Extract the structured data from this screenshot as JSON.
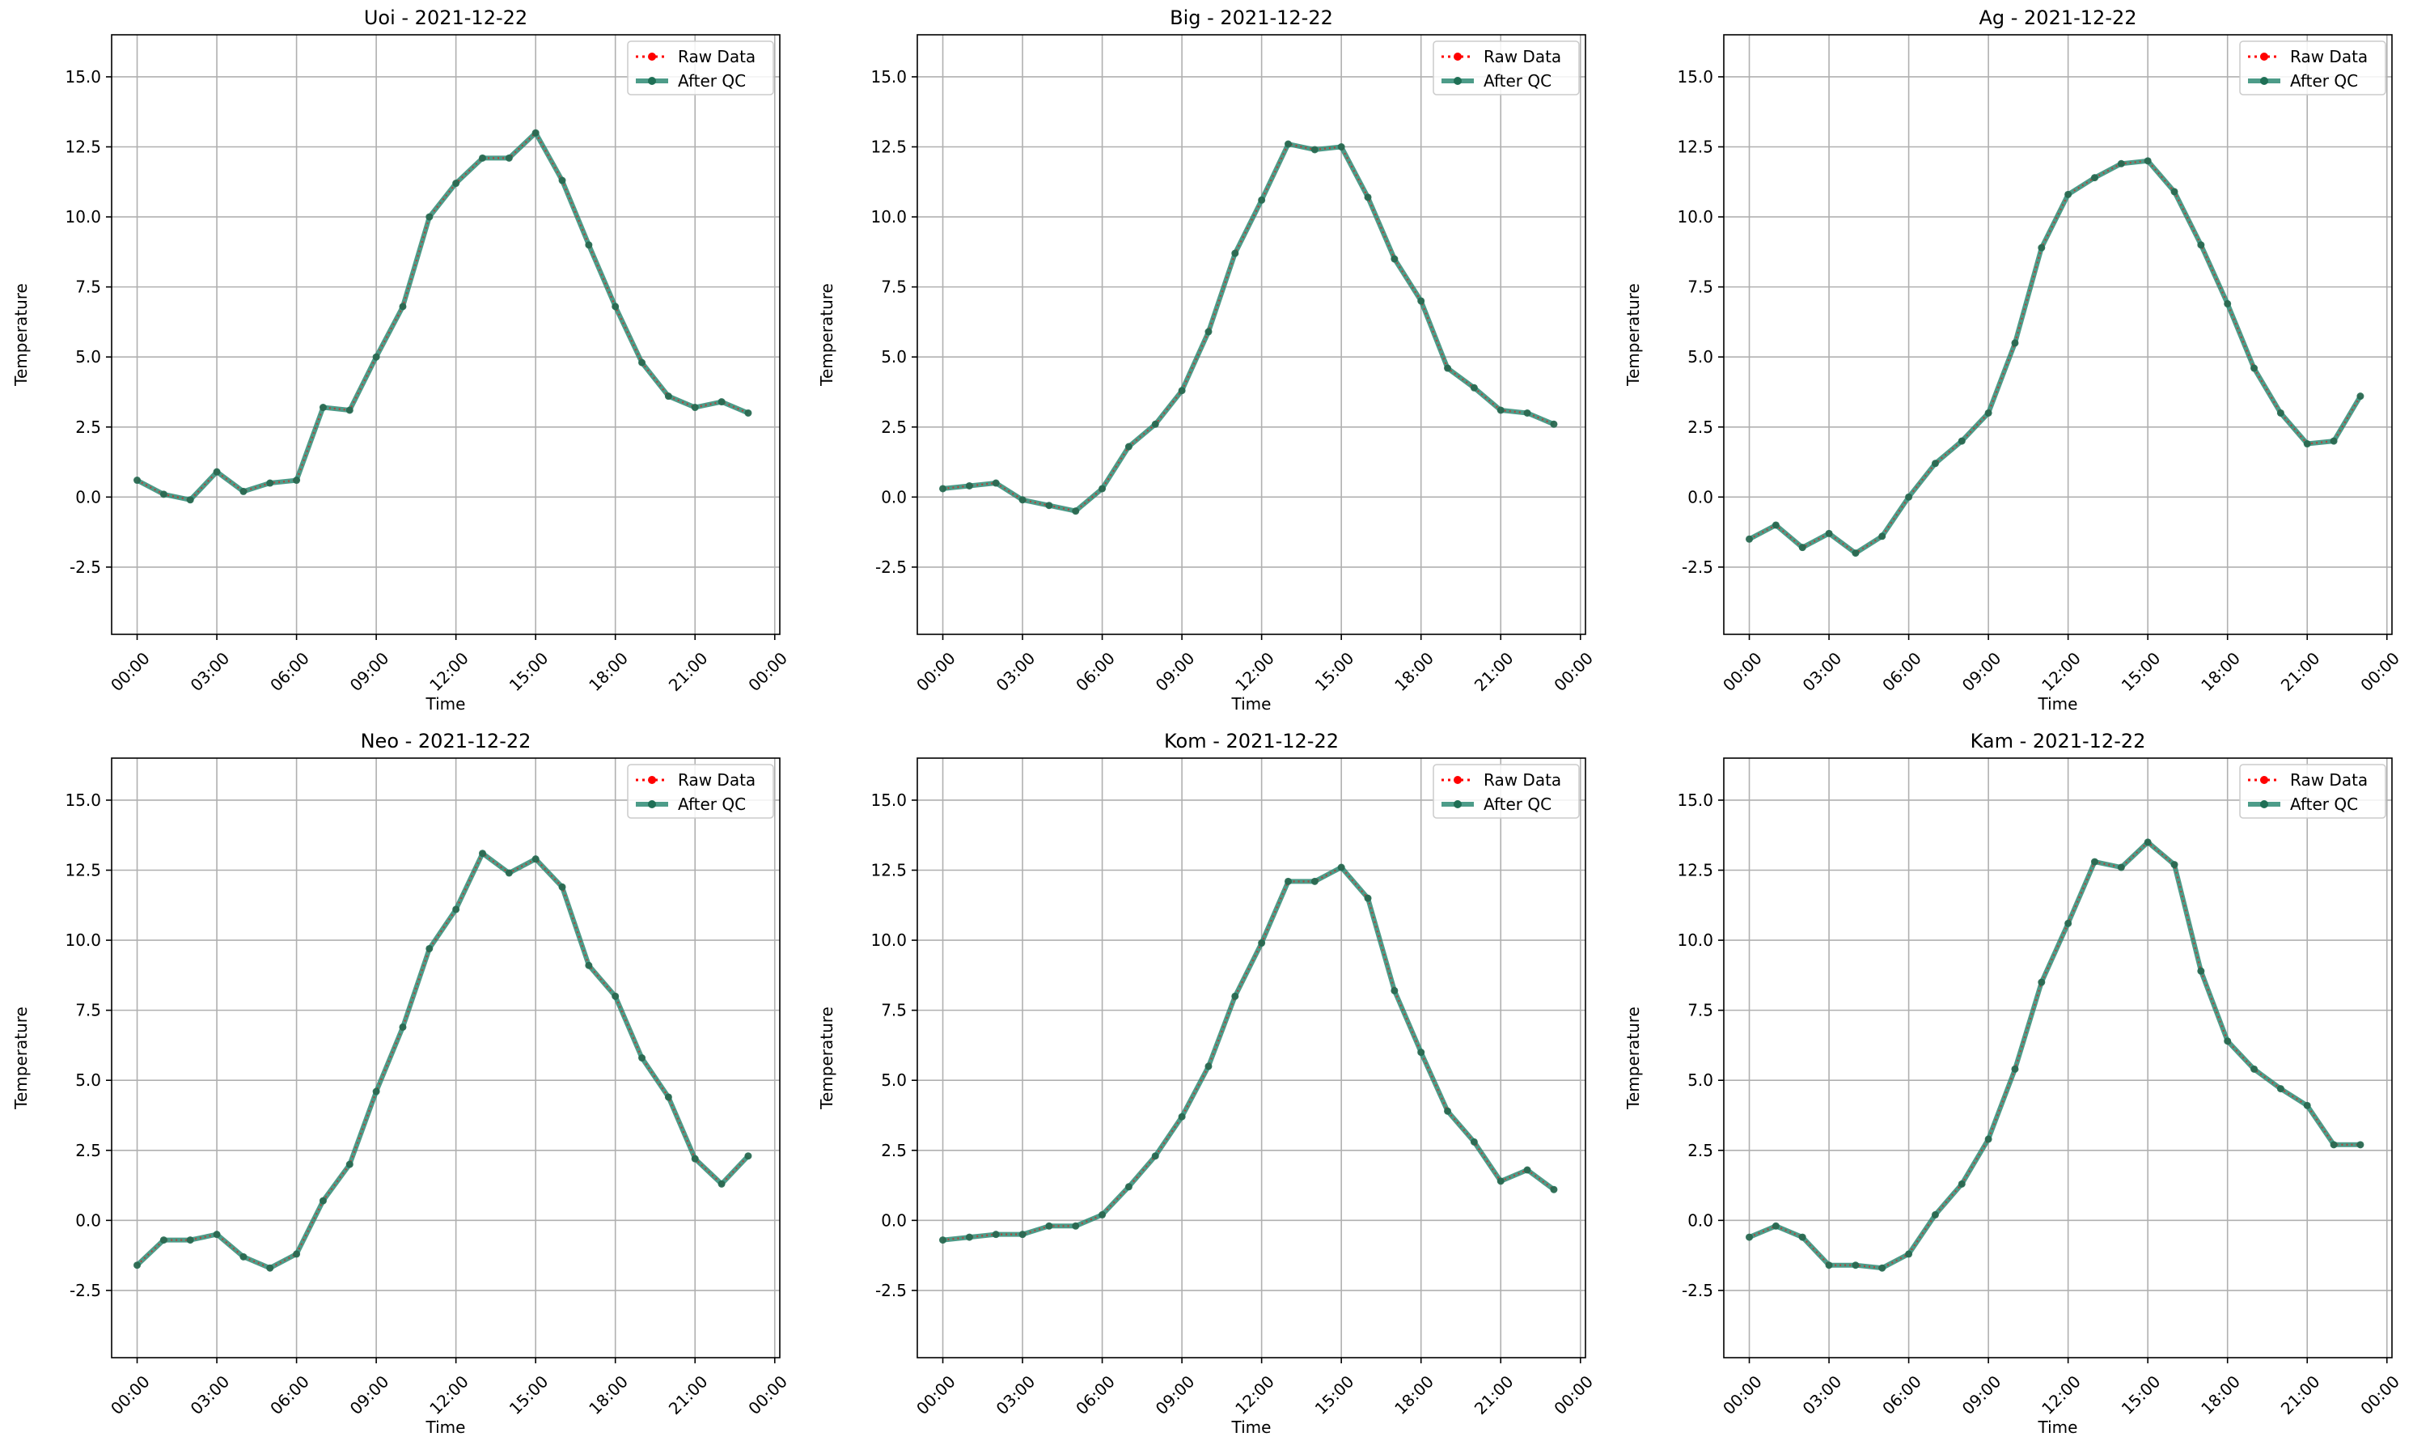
{
  "figure": {
    "legend_entries": [
      "Raw Data",
      "After QC"
    ],
    "colors": {
      "raw": "#ff0000",
      "qc": "#2e8b74",
      "qc_marker": "#1f6f55",
      "grid": "#b0b0b0"
    }
  },
  "chart_data": [
    {
      "type": "line",
      "title": "Uoi - 2021-12-22",
      "xlabel": "Time",
      "ylabel": "Temperature",
      "x": [
        "00:00",
        "01:00",
        "02:00",
        "03:00",
        "04:00",
        "05:00",
        "06:00",
        "07:00",
        "08:00",
        "09:00",
        "10:00",
        "11:00",
        "12:00",
        "13:00",
        "14:00",
        "15:00",
        "16:00",
        "17:00",
        "18:00",
        "19:00",
        "20:00",
        "21:00",
        "22:00",
        "23:00"
      ],
      "xticks": [
        "00:00",
        "03:00",
        "06:00",
        "09:00",
        "12:00",
        "15:00",
        "18:00",
        "21:00",
        "00:00"
      ],
      "yticks": [
        "-2.5",
        "0.0",
        "2.5",
        "5.0",
        "7.5",
        "10.0",
        "12.5",
        "15.0"
      ],
      "ylim": [
        -4.9,
        16.5
      ],
      "grid": true,
      "legend": "top-right",
      "series": [
        {
          "name": "Raw Data",
          "values": [
            0.6,
            0.1,
            -0.1,
            0.9,
            0.2,
            0.5,
            0.6,
            3.2,
            3.1,
            5.0,
            6.8,
            10.0,
            11.2,
            12.1,
            12.1,
            13.0,
            11.3,
            9.0,
            6.8,
            4.8,
            3.6,
            3.2,
            3.4,
            3.0
          ]
        },
        {
          "name": "After QC",
          "values": [
            0.6,
            0.1,
            -0.1,
            0.9,
            0.2,
            0.5,
            0.6,
            3.2,
            3.1,
            5.0,
            6.8,
            10.0,
            11.2,
            12.1,
            12.1,
            13.0,
            11.3,
            9.0,
            6.8,
            4.8,
            3.6,
            3.2,
            3.4,
            3.0
          ]
        }
      ]
    },
    {
      "type": "line",
      "title": "Big - 2021-12-22",
      "xlabel": "Time",
      "ylabel": "Temperature",
      "x": [
        "00:00",
        "01:00",
        "02:00",
        "03:00",
        "04:00",
        "05:00",
        "06:00",
        "07:00",
        "08:00",
        "09:00",
        "10:00",
        "11:00",
        "12:00",
        "13:00",
        "14:00",
        "15:00",
        "16:00",
        "17:00",
        "18:00",
        "19:00",
        "20:00",
        "21:00",
        "22:00",
        "23:00"
      ],
      "xticks": [
        "00:00",
        "03:00",
        "06:00",
        "09:00",
        "12:00",
        "15:00",
        "18:00",
        "21:00",
        "00:00"
      ],
      "yticks": [
        "-2.5",
        "0.0",
        "2.5",
        "5.0",
        "7.5",
        "10.0",
        "12.5",
        "15.0"
      ],
      "ylim": [
        -4.9,
        16.5
      ],
      "grid": true,
      "legend": "top-right",
      "series": [
        {
          "name": "Raw Data",
          "values": [
            0.3,
            0.4,
            0.5,
            -0.1,
            -0.3,
            -0.5,
            0.3,
            1.8,
            2.6,
            3.8,
            5.9,
            8.7,
            10.6,
            12.6,
            12.4,
            12.5,
            10.7,
            8.5,
            7.0,
            4.6,
            3.9,
            3.1,
            3.0,
            2.6
          ]
        },
        {
          "name": "After QC",
          "values": [
            0.3,
            0.4,
            0.5,
            -0.1,
            -0.3,
            -0.5,
            0.3,
            1.8,
            2.6,
            3.8,
            5.9,
            8.7,
            10.6,
            12.6,
            12.4,
            12.5,
            10.7,
            8.5,
            7.0,
            4.6,
            3.9,
            3.1,
            3.0,
            2.6
          ]
        }
      ]
    },
    {
      "type": "line",
      "title": "Ag - 2021-12-22",
      "xlabel": "Time",
      "ylabel": "Temperature",
      "x": [
        "00:00",
        "01:00",
        "02:00",
        "03:00",
        "04:00",
        "05:00",
        "06:00",
        "07:00",
        "08:00",
        "09:00",
        "10:00",
        "11:00",
        "12:00",
        "13:00",
        "14:00",
        "15:00",
        "16:00",
        "17:00",
        "18:00",
        "19:00",
        "20:00",
        "21:00",
        "22:00",
        "23:00"
      ],
      "xticks": [
        "00:00",
        "03:00",
        "06:00",
        "09:00",
        "12:00",
        "15:00",
        "18:00",
        "21:00",
        "00:00"
      ],
      "yticks": [
        "-2.5",
        "0.0",
        "2.5",
        "5.0",
        "7.5",
        "10.0",
        "12.5",
        "15.0"
      ],
      "ylim": [
        -4.9,
        16.5
      ],
      "grid": true,
      "legend": "top-right",
      "series": [
        {
          "name": "Raw Data",
          "values": [
            -1.5,
            -1.0,
            -1.8,
            -1.3,
            -2.0,
            -1.4,
            0.0,
            1.2,
            2.0,
            3.0,
            5.5,
            8.9,
            10.8,
            11.4,
            11.9,
            12.0,
            10.9,
            9.0,
            6.9,
            4.6,
            3.0,
            1.9,
            2.0,
            3.6
          ]
        },
        {
          "name": "After QC",
          "values": [
            -1.5,
            -1.0,
            -1.8,
            -1.3,
            -2.0,
            -1.4,
            0.0,
            1.2,
            2.0,
            3.0,
            5.5,
            8.9,
            10.8,
            11.4,
            11.9,
            12.0,
            10.9,
            9.0,
            6.9,
            4.6,
            3.0,
            1.9,
            2.0,
            3.6
          ]
        }
      ]
    },
    {
      "type": "line",
      "title": "Neo - 2021-12-22",
      "xlabel": "Time",
      "ylabel": "Temperature",
      "x": [
        "00:00",
        "01:00",
        "02:00",
        "03:00",
        "04:00",
        "05:00",
        "06:00",
        "07:00",
        "08:00",
        "09:00",
        "10:00",
        "11:00",
        "12:00",
        "13:00",
        "14:00",
        "15:00",
        "16:00",
        "17:00",
        "18:00",
        "19:00",
        "20:00",
        "21:00",
        "22:00",
        "23:00"
      ],
      "xticks": [
        "00:00",
        "03:00",
        "06:00",
        "09:00",
        "12:00",
        "15:00",
        "18:00",
        "21:00",
        "00:00"
      ],
      "yticks": [
        "-2.5",
        "0.0",
        "2.5",
        "5.0",
        "7.5",
        "10.0",
        "12.5",
        "15.0"
      ],
      "ylim": [
        -4.9,
        16.5
      ],
      "grid": true,
      "legend": "top-right",
      "series": [
        {
          "name": "Raw Data",
          "values": [
            -1.6,
            -0.7,
            -0.7,
            -0.5,
            -1.3,
            -1.7,
            -1.2,
            0.7,
            2.0,
            4.6,
            6.9,
            9.7,
            11.1,
            13.1,
            12.4,
            12.9,
            11.9,
            9.1,
            8.0,
            5.8,
            4.4,
            2.2,
            1.3,
            2.3
          ]
        },
        {
          "name": "After QC",
          "values": [
            -1.6,
            -0.7,
            -0.7,
            -0.5,
            -1.3,
            -1.7,
            -1.2,
            0.7,
            2.0,
            4.6,
            6.9,
            9.7,
            11.1,
            13.1,
            12.4,
            12.9,
            11.9,
            9.1,
            8.0,
            5.8,
            4.4,
            2.2,
            1.3,
            2.3
          ]
        }
      ]
    },
    {
      "type": "line",
      "title": "Kom - 2021-12-22",
      "xlabel": "Time",
      "ylabel": "Temperature",
      "x": [
        "00:00",
        "01:00",
        "02:00",
        "03:00",
        "04:00",
        "05:00",
        "06:00",
        "07:00",
        "08:00",
        "09:00",
        "10:00",
        "11:00",
        "12:00",
        "13:00",
        "14:00",
        "15:00",
        "16:00",
        "17:00",
        "18:00",
        "19:00",
        "20:00",
        "21:00",
        "22:00",
        "23:00"
      ],
      "xticks": [
        "00:00",
        "03:00",
        "06:00",
        "09:00",
        "12:00",
        "15:00",
        "18:00",
        "21:00",
        "00:00"
      ],
      "yticks": [
        "-2.5",
        "0.0",
        "2.5",
        "5.0",
        "7.5",
        "10.0",
        "12.5",
        "15.0"
      ],
      "ylim": [
        -4.9,
        16.5
      ],
      "grid": true,
      "legend": "top-right",
      "series": [
        {
          "name": "Raw Data",
          "values": [
            -0.7,
            -0.6,
            -0.5,
            -0.5,
            -0.2,
            -0.2,
            0.2,
            1.2,
            2.3,
            3.7,
            5.5,
            8.0,
            9.9,
            12.1,
            12.1,
            12.6,
            11.5,
            8.2,
            6.0,
            3.9,
            2.8,
            1.4,
            1.8,
            1.1
          ]
        },
        {
          "name": "After QC",
          "values": [
            -0.7,
            -0.6,
            -0.5,
            -0.5,
            -0.2,
            -0.2,
            0.2,
            1.2,
            2.3,
            3.7,
            5.5,
            8.0,
            9.9,
            12.1,
            12.1,
            12.6,
            11.5,
            8.2,
            6.0,
            3.9,
            2.8,
            1.4,
            1.8,
            1.1
          ]
        }
      ]
    },
    {
      "type": "line",
      "title": "Kam - 2021-12-22",
      "xlabel": "Time",
      "ylabel": "Temperature",
      "x": [
        "00:00",
        "01:00",
        "02:00",
        "03:00",
        "04:00",
        "05:00",
        "06:00",
        "07:00",
        "08:00",
        "09:00",
        "10:00",
        "11:00",
        "12:00",
        "13:00",
        "14:00",
        "15:00",
        "16:00",
        "17:00",
        "18:00",
        "19:00",
        "20:00",
        "21:00",
        "22:00",
        "23:00"
      ],
      "xticks": [
        "00:00",
        "03:00",
        "06:00",
        "09:00",
        "12:00",
        "15:00",
        "18:00",
        "21:00",
        "00:00"
      ],
      "yticks": [
        "-2.5",
        "0.0",
        "2.5",
        "5.0",
        "7.5",
        "10.0",
        "12.5",
        "15.0"
      ],
      "ylim": [
        -4.9,
        16.5
      ],
      "grid": true,
      "legend": "top-right",
      "series": [
        {
          "name": "Raw Data",
          "values": [
            -0.6,
            -0.2,
            -0.6,
            -1.6,
            -1.6,
            -1.7,
            -1.2,
            0.2,
            1.3,
            2.9,
            5.4,
            8.5,
            10.6,
            12.8,
            12.6,
            13.5,
            12.7,
            8.9,
            6.4,
            5.4,
            4.7,
            4.1,
            2.7,
            2.7
          ]
        },
        {
          "name": "After QC",
          "values": [
            -0.6,
            -0.2,
            -0.6,
            -1.6,
            -1.6,
            -1.7,
            -1.2,
            0.2,
            1.3,
            2.9,
            5.4,
            8.5,
            10.6,
            12.8,
            12.6,
            13.5,
            12.7,
            8.9,
            6.4,
            5.4,
            4.7,
            4.1,
            2.7,
            2.7
          ]
        }
      ]
    }
  ]
}
